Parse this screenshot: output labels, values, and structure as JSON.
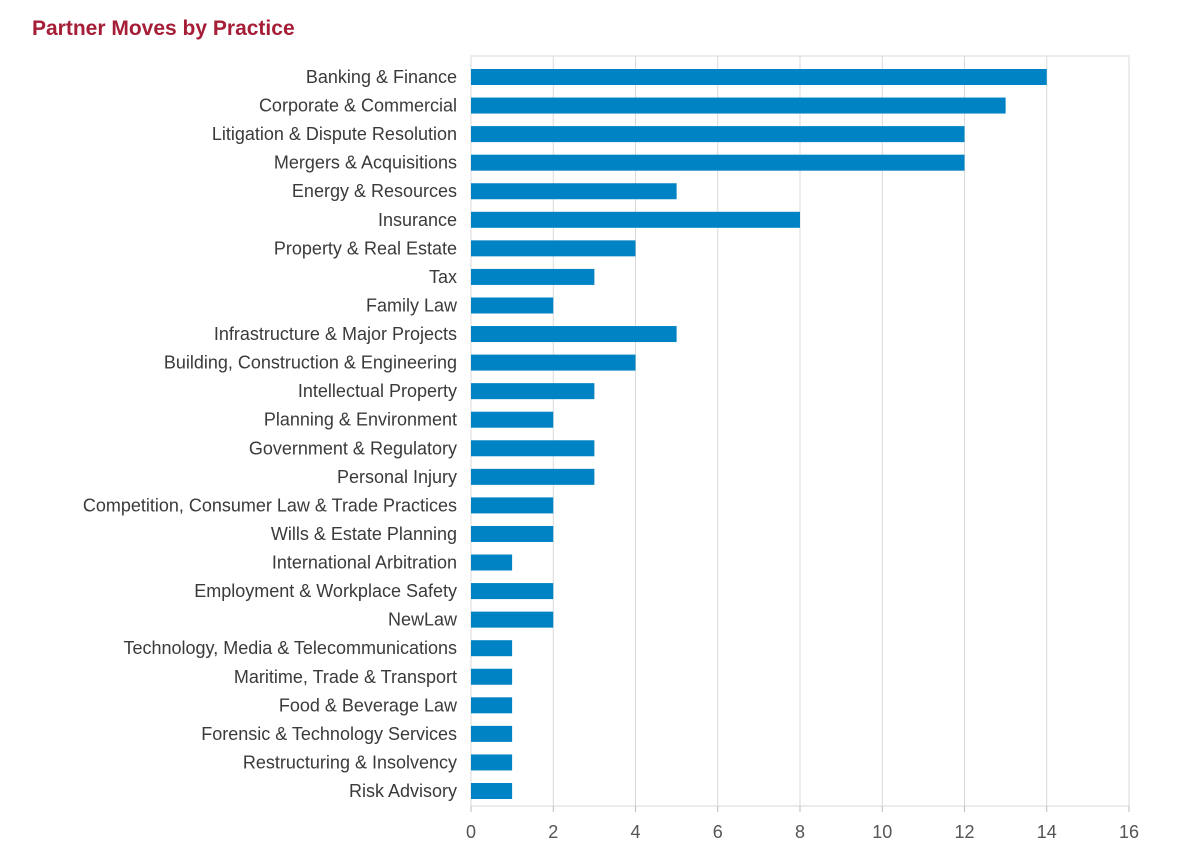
{
  "chart_data": {
    "type": "bar",
    "orientation": "horizontal",
    "title": "Partner Moves by Practice",
    "xlabel": "",
    "ylabel": "",
    "xlim": [
      0,
      16
    ],
    "xticks": [
      0,
      2,
      4,
      6,
      8,
      10,
      12,
      14,
      16
    ],
    "grid": true,
    "bar_color": "#0083c4",
    "title_color": "#a51d36",
    "categories": [
      "Banking & Finance",
      "Corporate & Commercial",
      "Litigation & Dispute Resolution",
      "Mergers & Acquisitions",
      "Energy & Resources",
      "Insurance",
      "Property & Real Estate",
      "Tax",
      "Family Law",
      "Infrastructure & Major Projects",
      "Building, Construction & Engineering",
      "Intellectual Property",
      "Planning & Environment",
      "Government & Regulatory",
      "Personal Injury",
      "Competition, Consumer Law & Trade Practices",
      "Wills & Estate Planning",
      "International Arbitration",
      "Employment & Workplace Safety",
      "NewLaw",
      "Technology, Media & Telecommunications",
      "Maritime, Trade & Transport",
      "Food & Beverage Law",
      "Forensic & Technology Services",
      "Restructuring & Insolvency",
      "Risk Advisory"
    ],
    "values": [
      14,
      13,
      12,
      12,
      5,
      8,
      4,
      3,
      2,
      5,
      4,
      3,
      2,
      3,
      3,
      2,
      2,
      1,
      2,
      2,
      1,
      1,
      1,
      1,
      1,
      1
    ]
  }
}
